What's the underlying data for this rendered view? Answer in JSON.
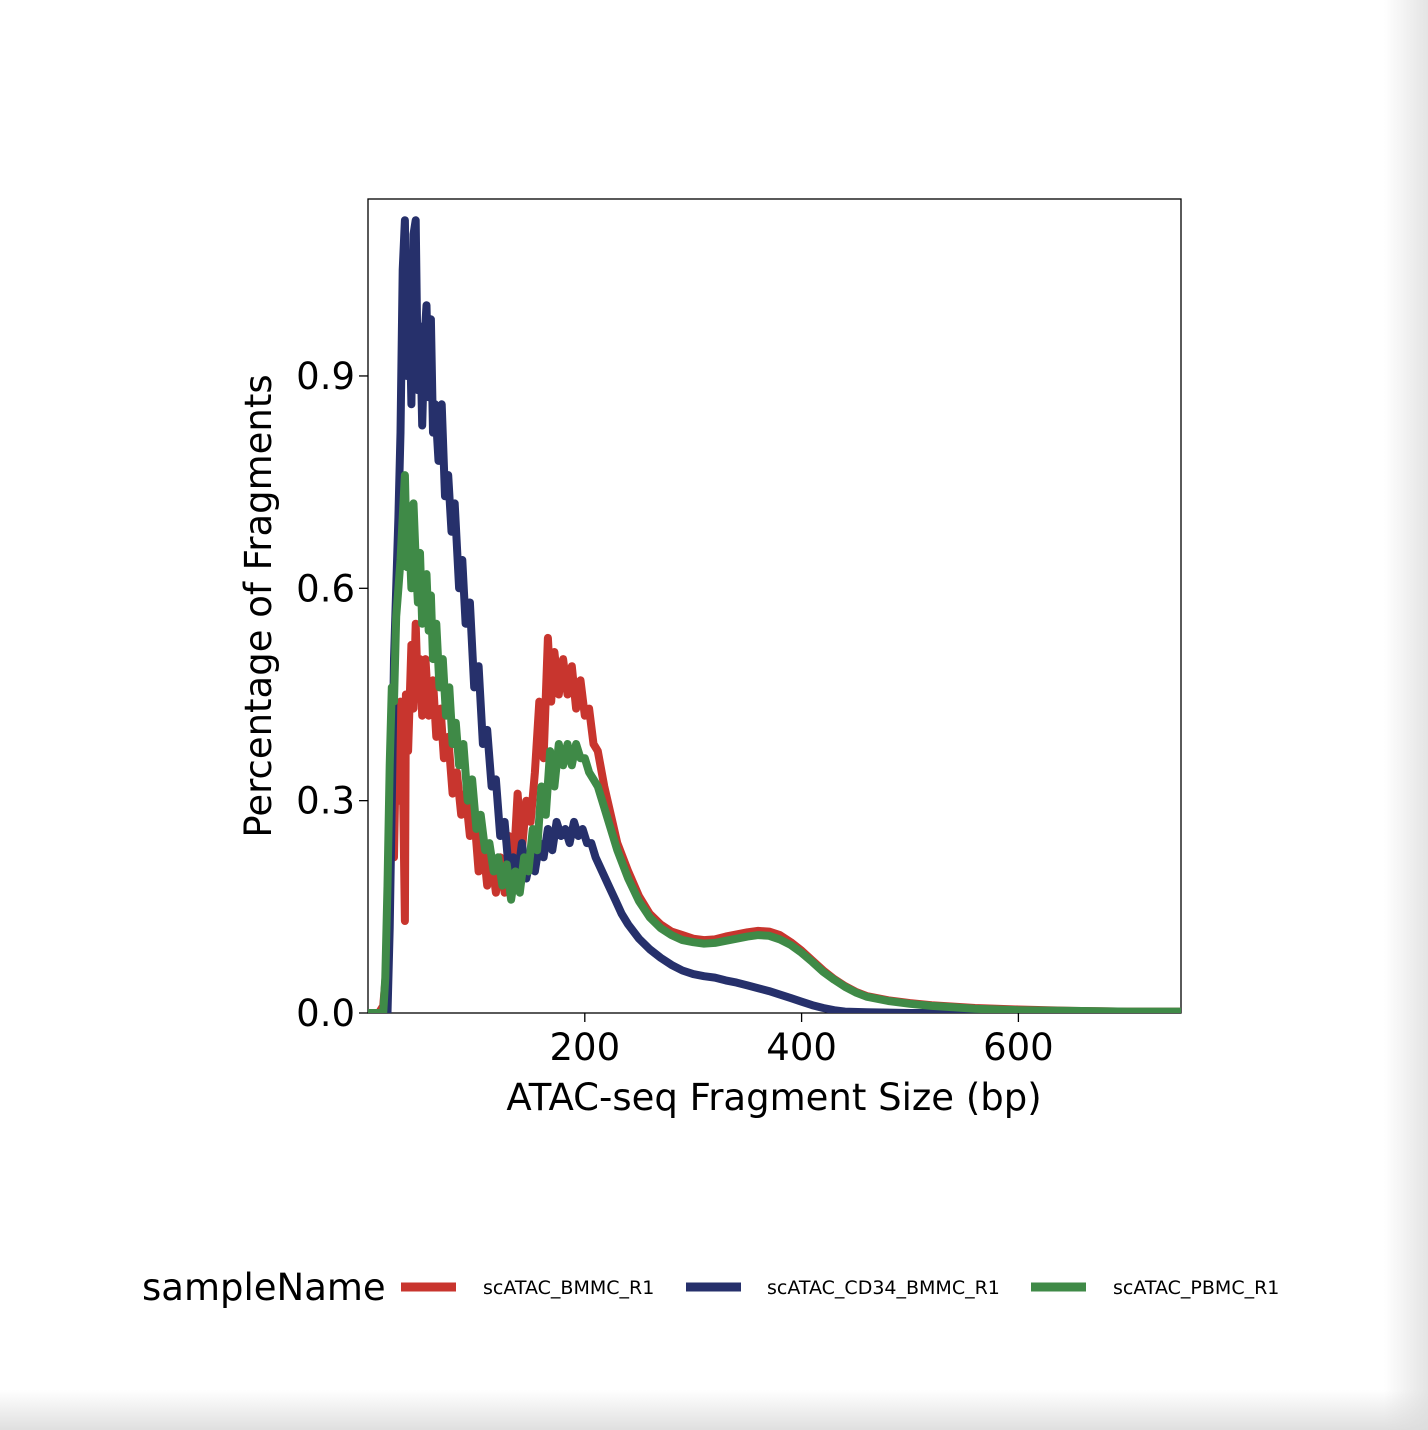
{
  "chart_data": {
    "type": "line",
    "title": "",
    "xlabel": "ATAC-seq Fragment Size (bp)",
    "ylabel": "Percentage of Fragments",
    "xlim": [
      0,
      750
    ],
    "ylim": [
      0,
      1.15
    ],
    "xticks": [
      200,
      400,
      600
    ],
    "xtick_labels": [
      "200",
      "400",
      "600"
    ],
    "yticks": [
      0.0,
      0.3,
      0.6,
      0.9
    ],
    "ytick_labels": [
      "0.0",
      "0.3",
      "0.6",
      "0.9"
    ],
    "grid": false,
    "legend_title": "sampleName",
    "legend_position": "bottom",
    "series": [
      {
        "name": "scATAC_BMMC_R1",
        "color": "#C8352E",
        "points": [
          [
            0,
            0.0
          ],
          [
            10,
            0.0
          ],
          [
            14,
            0.01
          ],
          [
            18,
            0.08
          ],
          [
            22,
            0.3
          ],
          [
            24,
            0.22
          ],
          [
            26,
            0.4
          ],
          [
            28,
            0.3
          ],
          [
            30,
            0.44
          ],
          [
            32,
            0.35
          ],
          [
            34,
            0.13
          ],
          [
            35,
            0.45
          ],
          [
            37,
            0.37
          ],
          [
            40,
            0.52
          ],
          [
            42,
            0.43
          ],
          [
            44,
            0.55
          ],
          [
            46,
            0.45
          ],
          [
            48,
            0.5
          ],
          [
            50,
            0.42
          ],
          [
            53,
            0.5
          ],
          [
            56,
            0.42
          ],
          [
            60,
            0.47
          ],
          [
            63,
            0.39
          ],
          [
            67,
            0.43
          ],
          [
            70,
            0.36
          ],
          [
            74,
            0.39
          ],
          [
            78,
            0.31
          ],
          [
            82,
            0.34
          ],
          [
            86,
            0.28
          ],
          [
            90,
            0.31
          ],
          [
            94,
            0.25
          ],
          [
            98,
            0.28
          ],
          [
            102,
            0.2
          ],
          [
            106,
            0.24
          ],
          [
            110,
            0.18
          ],
          [
            114,
            0.22
          ],
          [
            118,
            0.17
          ],
          [
            122,
            0.22
          ],
          [
            126,
            0.17
          ],
          [
            130,
            0.25
          ],
          [
            134,
            0.2
          ],
          [
            138,
            0.31
          ],
          [
            142,
            0.23
          ],
          [
            146,
            0.3
          ],
          [
            150,
            0.27
          ],
          [
            154,
            0.34
          ],
          [
            158,
            0.44
          ],
          [
            162,
            0.36
          ],
          [
            166,
            0.53
          ],
          [
            169,
            0.44
          ],
          [
            172,
            0.51
          ],
          [
            176,
            0.45
          ],
          [
            180,
            0.5
          ],
          [
            184,
            0.45
          ],
          [
            188,
            0.49
          ],
          [
            192,
            0.43
          ],
          [
            196,
            0.47
          ],
          [
            200,
            0.42
          ],
          [
            204,
            0.43
          ],
          [
            208,
            0.38
          ],
          [
            212,
            0.37
          ],
          [
            218,
            0.32
          ],
          [
            224,
            0.28
          ],
          [
            230,
            0.24
          ],
          [
            240,
            0.2
          ],
          [
            250,
            0.165
          ],
          [
            260,
            0.14
          ],
          [
            270,
            0.125
          ],
          [
            280,
            0.115
          ],
          [
            290,
            0.11
          ],
          [
            300,
            0.105
          ],
          [
            310,
            0.103
          ],
          [
            320,
            0.104
          ],
          [
            330,
            0.108
          ],
          [
            340,
            0.111
          ],
          [
            350,
            0.114
          ],
          [
            360,
            0.116
          ],
          [
            370,
            0.115
          ],
          [
            380,
            0.11
          ],
          [
            390,
            0.1
          ],
          [
            400,
            0.088
          ],
          [
            410,
            0.074
          ],
          [
            420,
            0.06
          ],
          [
            430,
            0.048
          ],
          [
            440,
            0.038
          ],
          [
            450,
            0.03
          ],
          [
            460,
            0.024
          ],
          [
            480,
            0.018
          ],
          [
            500,
            0.014
          ],
          [
            520,
            0.011
          ],
          [
            540,
            0.009
          ],
          [
            560,
            0.007
          ],
          [
            580,
            0.006
          ],
          [
            600,
            0.005
          ],
          [
            650,
            0.003
          ],
          [
            700,
            0.002
          ],
          [
            750,
            0.002
          ]
        ]
      },
      {
        "name": "scATAC_CD34_BMMC_R1",
        "color": "#26306B",
        "points": [
          [
            0,
            0.0
          ],
          [
            18,
            0.0
          ],
          [
            20,
            0.12
          ],
          [
            22,
            0.3
          ],
          [
            24,
            0.5
          ],
          [
            26,
            0.6
          ],
          [
            28,
            0.7
          ],
          [
            30,
            0.82
          ],
          [
            32,
            1.05
          ],
          [
            34,
            1.12
          ],
          [
            36,
            0.9
          ],
          [
            38,
            1.02
          ],
          [
            40,
            0.86
          ],
          [
            42,
            1.1
          ],
          [
            44,
            1.12
          ],
          [
            46,
            0.88
          ],
          [
            48,
            0.97
          ],
          [
            50,
            0.83
          ],
          [
            52,
            0.95
          ],
          [
            54,
            1.0
          ],
          [
            56,
            0.87
          ],
          [
            58,
            0.98
          ],
          [
            60,
            0.82
          ],
          [
            62,
            0.86
          ],
          [
            65,
            0.78
          ],
          [
            68,
            0.86
          ],
          [
            71,
            0.73
          ],
          [
            74,
            0.76
          ],
          [
            77,
            0.68
          ],
          [
            80,
            0.72
          ],
          [
            84,
            0.6
          ],
          [
            87,
            0.64
          ],
          [
            90,
            0.55
          ],
          [
            94,
            0.58
          ],
          [
            98,
            0.46
          ],
          [
            102,
            0.49
          ],
          [
            106,
            0.38
          ],
          [
            110,
            0.4
          ],
          [
            114,
            0.32
          ],
          [
            118,
            0.33
          ],
          [
            122,
            0.25
          ],
          [
            126,
            0.27
          ],
          [
            130,
            0.2
          ],
          [
            134,
            0.22
          ],
          [
            138,
            0.19
          ],
          [
            142,
            0.24
          ],
          [
            146,
            0.19
          ],
          [
            150,
            0.22
          ],
          [
            154,
            0.2
          ],
          [
            158,
            0.24
          ],
          [
            162,
            0.22
          ],
          [
            166,
            0.26
          ],
          [
            170,
            0.23
          ],
          [
            174,
            0.27
          ],
          [
            178,
            0.25
          ],
          [
            182,
            0.26
          ],
          [
            186,
            0.24
          ],
          [
            190,
            0.27
          ],
          [
            194,
            0.25
          ],
          [
            198,
            0.26
          ],
          [
            202,
            0.24
          ],
          [
            206,
            0.24
          ],
          [
            210,
            0.22
          ],
          [
            216,
            0.2
          ],
          [
            222,
            0.18
          ],
          [
            228,
            0.16
          ],
          [
            234,
            0.14
          ],
          [
            240,
            0.125
          ],
          [
            250,
            0.105
          ],
          [
            260,
            0.09
          ],
          [
            270,
            0.078
          ],
          [
            280,
            0.068
          ],
          [
            290,
            0.06
          ],
          [
            300,
            0.055
          ],
          [
            310,
            0.052
          ],
          [
            320,
            0.05
          ],
          [
            330,
            0.046
          ],
          [
            340,
            0.043
          ],
          [
            350,
            0.039
          ],
          [
            360,
            0.035
          ],
          [
            370,
            0.031
          ],
          [
            380,
            0.026
          ],
          [
            390,
            0.021
          ],
          [
            400,
            0.016
          ],
          [
            410,
            0.011
          ],
          [
            420,
            0.007
          ],
          [
            430,
            0.004
          ],
          [
            440,
            0.002
          ],
          [
            460,
            0.001
          ],
          [
            500,
            0.0
          ],
          [
            750,
            0.0
          ]
        ]
      },
      {
        "name": "scATAC_PBMC_R1",
        "color": "#3F8A47",
        "points": [
          [
            0,
            0.0
          ],
          [
            14,
            0.0
          ],
          [
            16,
            0.05
          ],
          [
            18,
            0.18
          ],
          [
            20,
            0.35
          ],
          [
            22,
            0.46
          ],
          [
            24,
            0.44
          ],
          [
            26,
            0.56
          ],
          [
            28,
            0.6
          ],
          [
            30,
            0.64
          ],
          [
            32,
            0.7
          ],
          [
            34,
            0.76
          ],
          [
            36,
            0.63
          ],
          [
            38,
            0.68
          ],
          [
            40,
            0.6
          ],
          [
            42,
            0.72
          ],
          [
            44,
            0.64
          ],
          [
            46,
            0.58
          ],
          [
            48,
            0.65
          ],
          [
            50,
            0.55
          ],
          [
            52,
            0.6
          ],
          [
            54,
            0.62
          ],
          [
            56,
            0.54
          ],
          [
            58,
            0.59
          ],
          [
            60,
            0.5
          ],
          [
            63,
            0.55
          ],
          [
            66,
            0.46
          ],
          [
            69,
            0.5
          ],
          [
            72,
            0.42
          ],
          [
            75,
            0.46
          ],
          [
            78,
            0.38
          ],
          [
            81,
            0.41
          ],
          [
            84,
            0.35
          ],
          [
            88,
            0.38
          ],
          [
            92,
            0.3
          ],
          [
            96,
            0.33
          ],
          [
            100,
            0.26
          ],
          [
            104,
            0.28
          ],
          [
            108,
            0.23
          ],
          [
            112,
            0.24
          ],
          [
            116,
            0.2
          ],
          [
            120,
            0.22
          ],
          [
            124,
            0.18
          ],
          [
            128,
            0.21
          ],
          [
            132,
            0.16
          ],
          [
            136,
            0.2
          ],
          [
            140,
            0.17
          ],
          [
            144,
            0.22
          ],
          [
            148,
            0.2
          ],
          [
            152,
            0.26
          ],
          [
            156,
            0.23
          ],
          [
            160,
            0.32
          ],
          [
            164,
            0.28
          ],
          [
            168,
            0.37
          ],
          [
            172,
            0.32
          ],
          [
            176,
            0.38
          ],
          [
            180,
            0.35
          ],
          [
            184,
            0.38
          ],
          [
            188,
            0.35
          ],
          [
            192,
            0.38
          ],
          [
            196,
            0.36
          ],
          [
            200,
            0.36
          ],
          [
            204,
            0.34
          ],
          [
            208,
            0.33
          ],
          [
            212,
            0.32
          ],
          [
            218,
            0.29
          ],
          [
            224,
            0.26
          ],
          [
            230,
            0.23
          ],
          [
            240,
            0.19
          ],
          [
            250,
            0.158
          ],
          [
            260,
            0.135
          ],
          [
            270,
            0.12
          ],
          [
            280,
            0.11
          ],
          [
            290,
            0.103
          ],
          [
            300,
            0.1
          ],
          [
            310,
            0.098
          ],
          [
            320,
            0.099
          ],
          [
            330,
            0.102
          ],
          [
            340,
            0.105
          ],
          [
            350,
            0.108
          ],
          [
            360,
            0.11
          ],
          [
            370,
            0.109
          ],
          [
            380,
            0.104
          ],
          [
            390,
            0.096
          ],
          [
            400,
            0.085
          ],
          [
            410,
            0.072
          ],
          [
            420,
            0.058
          ],
          [
            430,
            0.047
          ],
          [
            440,
            0.037
          ],
          [
            450,
            0.029
          ],
          [
            460,
            0.023
          ],
          [
            480,
            0.017
          ],
          [
            500,
            0.013
          ],
          [
            520,
            0.01
          ],
          [
            540,
            0.008
          ],
          [
            560,
            0.006
          ],
          [
            580,
            0.005
          ],
          [
            600,
            0.004
          ],
          [
            650,
            0.003
          ],
          [
            700,
            0.002
          ],
          [
            750,
            0.002
          ]
        ]
      }
    ]
  }
}
